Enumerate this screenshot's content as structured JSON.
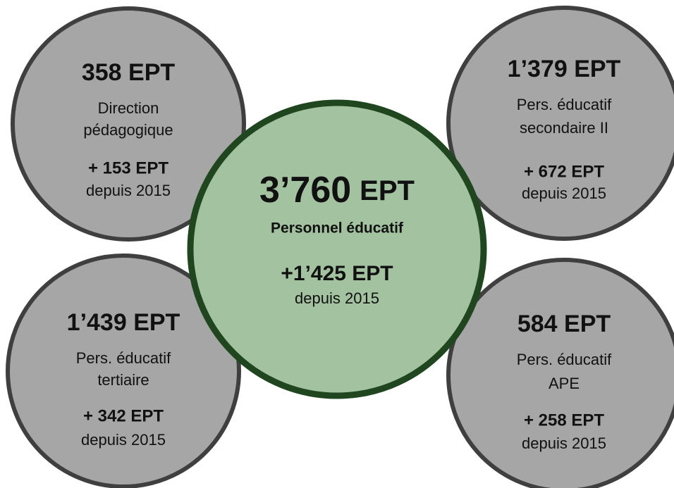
{
  "center": {
    "value": "3’760",
    "unit": "EPT",
    "label": "Personnel éducatif",
    "change": "+1’425 EPT",
    "since": "depuis 2015"
  },
  "nodes": [
    {
      "title": "358 EPT",
      "lines": [
        "Direction",
        "pédagogique"
      ],
      "change": "+ 153 EPT",
      "since": "depuis 2015"
    },
    {
      "title": "1’379 EPT",
      "lines": [
        "Pers. éducatif",
        "secondaire II"
      ],
      "change": "+ 672 EPT",
      "since": "depuis 2015"
    },
    {
      "title": "1’439 EPT",
      "lines": [
        "Pers. éducatif",
        "tertiaire"
      ],
      "change": "+ 342 EPT",
      "since": "depuis 2015"
    },
    {
      "title": "584 EPT",
      "lines": [
        "Pers. éducatif",
        "APE"
      ],
      "change": "+ 258 EPT",
      "since": "depuis 2015"
    }
  ]
}
